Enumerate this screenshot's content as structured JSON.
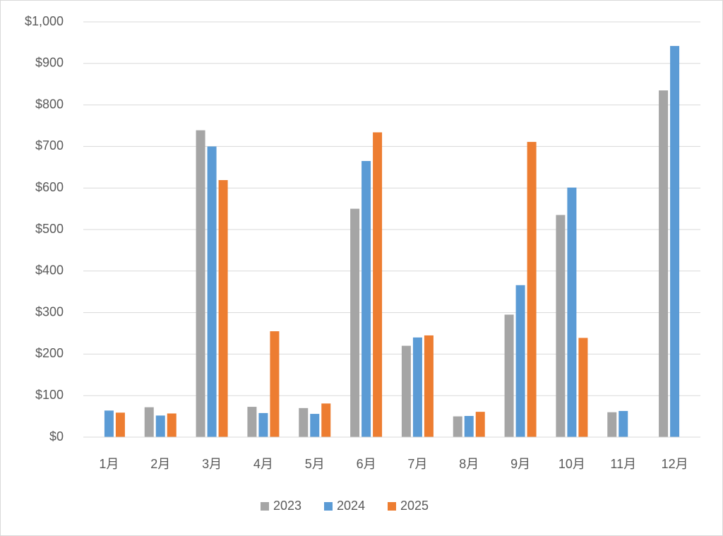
{
  "chart_data": {
    "type": "bar",
    "categories": [
      "1月",
      "2月",
      "3月",
      "4月",
      "5月",
      "6月",
      "7月",
      "8月",
      "9月",
      "10月",
      "11月",
      "12月"
    ],
    "series": [
      {
        "name": "2023",
        "color": "#a5a5a5",
        "values": [
          null,
          72,
          739,
          73,
          70,
          550,
          220,
          50,
          295,
          535,
          60,
          835
        ]
      },
      {
        "name": "2024",
        "color": "#5b9bd5",
        "values": [
          64,
          52,
          700,
          58,
          56,
          665,
          240,
          51,
          366,
          601,
          63,
          942
        ]
      },
      {
        "name": "2025",
        "color": "#ed7d31",
        "values": [
          59,
          57,
          619,
          255,
          81,
          734,
          245,
          61,
          711,
          239,
          null,
          null
        ]
      }
    ],
    "ylim": [
      0,
      1000
    ],
    "yticks": [
      {
        "value": 0,
        "label": "$0"
      },
      {
        "value": 100,
        "label": "$100"
      },
      {
        "value": 200,
        "label": "$200"
      },
      {
        "value": 300,
        "label": "$300"
      },
      {
        "value": 400,
        "label": "$400"
      },
      {
        "value": 500,
        "label": "$500"
      },
      {
        "value": 600,
        "label": "$600"
      },
      {
        "value": 700,
        "label": "$700"
      },
      {
        "value": 800,
        "label": "$800"
      },
      {
        "value": 900,
        "label": "$900"
      },
      {
        "value": 1000,
        "label": "$1,000"
      }
    ],
    "grid": true,
    "legend": "bottom"
  }
}
